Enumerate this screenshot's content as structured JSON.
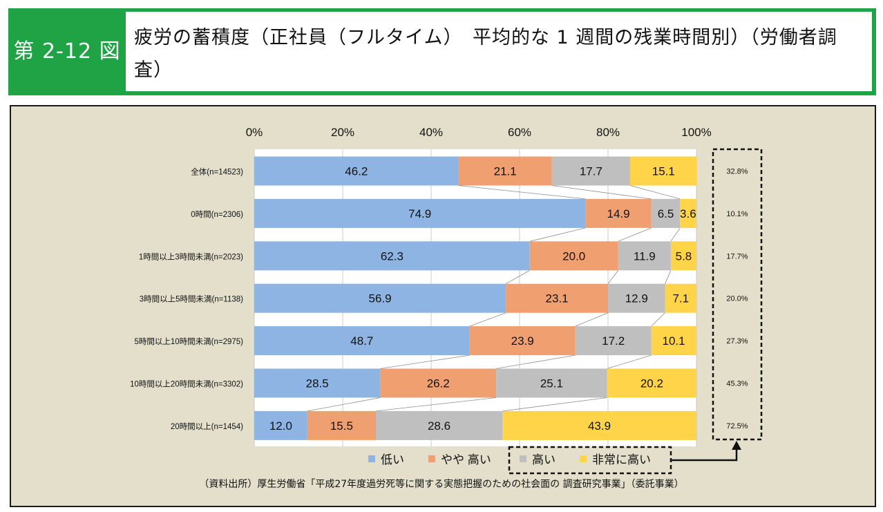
{
  "header": {
    "figure_number": "第 2-12 図",
    "title": "疲労の蓄積度（正社員（フルタイム）　平均的な 1 週間の残業時間別）（労働者調査）"
  },
  "colors": {
    "header_green": "#1fa344",
    "panel_bg": "#e3dfcb",
    "low": "#8db4e2",
    "slightly_high": "#f0a070",
    "high": "#bfbfbf",
    "very_high": "#ffd449"
  },
  "chart_data": {
    "type": "bar",
    "orientation": "horizontal",
    "stacked": true,
    "xlim": [
      0,
      100
    ],
    "x_ticks": [
      "0%",
      "20%",
      "40%",
      "60%",
      "80%",
      "100%"
    ],
    "categories": [
      "全体(n=14523)",
      "0時間(n=2306)",
      "1時間以上3時間未満(n=2023)",
      "3時間以上5時間未満(n=1138)",
      "5時間以上10時間未満(n=2975)",
      "10時間以上20時間未満(n=3302)",
      "20時間以上(n=1454)"
    ],
    "series": [
      {
        "name": "低い",
        "values": [
          46.2,
          74.9,
          62.3,
          56.9,
          48.7,
          28.5,
          12.0
        ],
        "labels": [
          "46.2",
          "74.9",
          "62.3",
          "56.9",
          "48.7",
          "28.5",
          "12.0"
        ]
      },
      {
        "name": "やや 高い",
        "values": [
          21.1,
          14.9,
          20.0,
          23.1,
          23.9,
          26.2,
          15.5
        ],
        "labels": [
          "21.1",
          "14.9",
          "20.0",
          "23.1",
          "23.9",
          "26.2",
          "15.5"
        ]
      },
      {
        "name": "高い",
        "values": [
          17.7,
          6.5,
          11.9,
          12.9,
          17.2,
          25.1,
          28.6
        ],
        "labels": [
          "17.7",
          "6.5",
          "11.9",
          "12.9",
          "17.2",
          "25.1",
          "28.6"
        ]
      },
      {
        "name": "非常に高い",
        "values": [
          15.1,
          3.6,
          5.8,
          7.1,
          10.1,
          20.2,
          43.9
        ],
        "labels": [
          "15.1",
          "3.6",
          "5.8",
          "7.1",
          "10.1",
          "20.2",
          "43.9"
        ]
      }
    ],
    "high_total_labels": [
      "32.8%",
      "10.1%",
      "17.7%",
      "20.0%",
      "27.3%",
      "45.3%",
      "72.5%"
    ],
    "legend_position": "bottom",
    "annotation": "dashed box around 高い + 非常に高い legend with arrow to sum column"
  },
  "source_note": "（資料出所）厚生労働省「平成27年度過労死等に関する実態把握のための社会面の 調査研究事業」（委託事業）"
}
